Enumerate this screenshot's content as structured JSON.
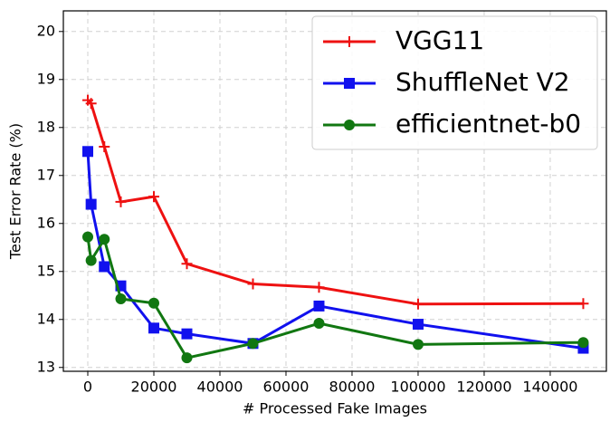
{
  "chart_data": {
    "type": "line",
    "xlabel": "# Processed Fake Images",
    "ylabel": "Test Error Rate (%)",
    "x": [
      0,
      1000,
      5000,
      10000,
      20000,
      30000,
      50000,
      70000,
      100000,
      150000
    ],
    "series": [
      {
        "name": "VGG11",
        "color": "#ee1111",
        "marker": "plus",
        "values": [
          18.57,
          18.5,
          17.6,
          16.45,
          16.56,
          15.16,
          14.74,
          14.67,
          14.32,
          14.33
        ]
      },
      {
        "name": "ShuffleNet V2",
        "color": "#1111ee",
        "marker": "square",
        "values": [
          17.5,
          16.4,
          15.1,
          14.7,
          13.82,
          13.7,
          13.5,
          14.28,
          13.9,
          13.4
        ]
      },
      {
        "name": "efficientnet-b0",
        "color": "#117711",
        "marker": "circle",
        "values": [
          15.72,
          15.23,
          15.67,
          14.43,
          14.34,
          13.2,
          13.5,
          13.92,
          13.48,
          13.52
        ]
      }
    ],
    "xlim": [
      -7400,
      157000
    ],
    "ylim": [
      12.92,
      20.43
    ],
    "xticks": [
      0,
      20000,
      40000,
      60000,
      80000,
      100000,
      120000,
      140000
    ],
    "yticks": [
      13,
      14,
      15,
      16,
      17,
      18,
      19,
      20
    ],
    "grid": true,
    "legend": "upper right"
  }
}
